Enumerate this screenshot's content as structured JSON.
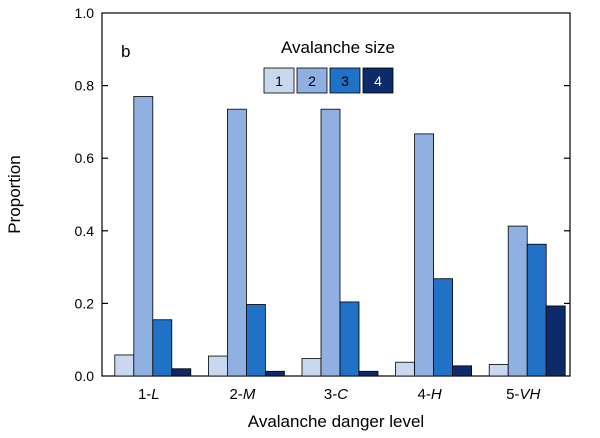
{
  "chart_data": {
    "type": "bar",
    "panel_label": "b",
    "title": "",
    "xlabel": "Avalanche danger level",
    "ylabel": "Proportion",
    "ylim": [
      0,
      1.0
    ],
    "yticks": [
      "0.0",
      "0.2",
      "0.4",
      "0.6",
      "0.8",
      "1.0"
    ],
    "ytick_values": [
      0,
      0.2,
      0.4,
      0.6,
      0.8,
      1.0
    ],
    "categories": [
      {
        "prefix": "1-",
        "suffix": "L"
      },
      {
        "prefix": "2-",
        "suffix": "M"
      },
      {
        "prefix": "3-",
        "suffix": "C"
      },
      {
        "prefix": "4-",
        "suffix": "H"
      },
      {
        "prefix": "5-",
        "suffix": "VH"
      }
    ],
    "legend": {
      "title": "Avalanche size",
      "position": "top-center"
    },
    "series": [
      {
        "name": "1",
        "color": "#c8d8ee",
        "values": [
          0.058,
          0.055,
          0.048,
          0.038,
          0.032
        ]
      },
      {
        "name": "2",
        "color": "#8fb0e0",
        "values": [
          0.77,
          0.735,
          0.735,
          0.667,
          0.413
        ]
      },
      {
        "name": "3",
        "color": "#1f72c6",
        "values": [
          0.155,
          0.197,
          0.204,
          0.268,
          0.363
        ]
      },
      {
        "name": "4",
        "color": "#0d2b6b",
        "values": [
          0.02,
          0.013,
          0.013,
          0.028,
          0.193
        ]
      }
    ]
  }
}
